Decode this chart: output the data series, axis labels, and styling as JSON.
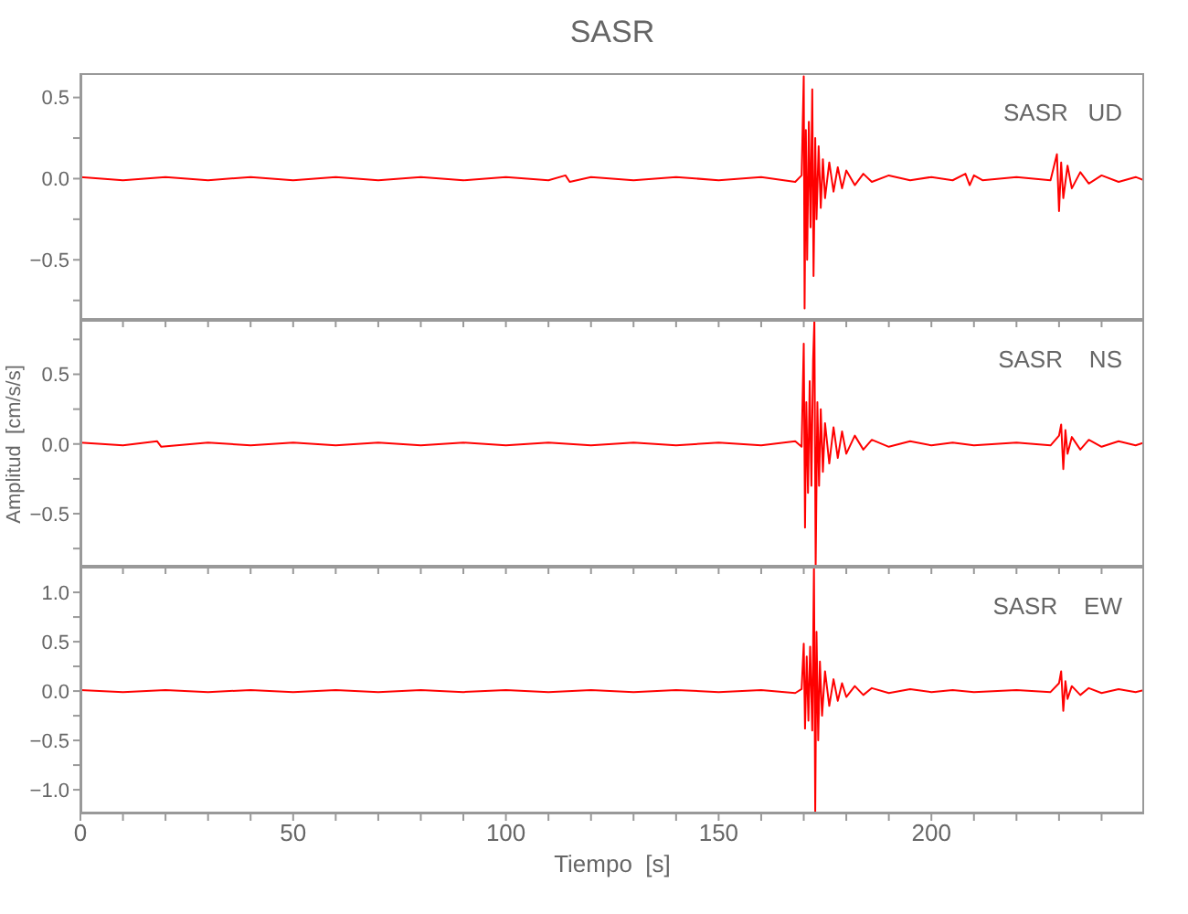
{
  "chart_data": [
    {
      "type": "line",
      "title": "SASR",
      "annotations": [
        "SASR   UD"
      ],
      "xlim": [
        0,
        250
      ],
      "ylim": [
        -0.87,
        0.65
      ],
      "tick_labels": "y",
      "xticks": [
        0,
        {
          "value": 10,
          "label": null
        },
        {
          "value": 20,
          "label": null
        },
        {
          "value": 30,
          "label": null
        },
        {
          "value": 40,
          "label": null
        },
        50,
        {
          "value": 60,
          "label": null
        },
        {
          "value": 70,
          "label": null
        },
        {
          "value": 80,
          "label": null
        },
        {
          "value": 90,
          "label": null
        },
        100,
        {
          "value": 110,
          "label": null
        },
        {
          "value": 120,
          "label": null
        },
        {
          "value": 130,
          "label": null
        },
        {
          "value": 140,
          "label": null
        },
        150,
        {
          "value": 160,
          "label": null
        },
        {
          "value": 170,
          "label": null
        },
        {
          "value": 180,
          "label": null
        },
        {
          "value": 190,
          "label": null
        },
        200,
        {
          "value": 210,
          "label": null
        },
        {
          "value": 220,
          "label": null
        },
        {
          "value": 230,
          "label": null
        },
        {
          "value": 240,
          "label": null
        }
      ],
      "yticks": [
        {
          "value": -0.75,
          "label": null
        },
        {
          "value": -0.5,
          "label": "−0.5"
        },
        {
          "value": -0.25,
          "label": null
        },
        {
          "value": 0,
          "label": "0.0"
        },
        {
          "value": 0.25,
          "label": null
        },
        0.5
      ],
      "series": [
        {
          "color": "#ff0000",
          "x": [
            0,
            10,
            20,
            30,
            40,
            50,
            60,
            70,
            80,
            90,
            100,
            110,
            114,
            115,
            120,
            130,
            140,
            150,
            160,
            168,
            169.5,
            170,
            170.2,
            170.5,
            170.8,
            171.2,
            171.6,
            172,
            172.3,
            172.7,
            173,
            173.5,
            174,
            174.5,
            175,
            176,
            177,
            178,
            179,
            180,
            182,
            184,
            186,
            190,
            195,
            200,
            205,
            208,
            209,
            210,
            212,
            220,
            228,
            229.5,
            230,
            230.5,
            231,
            232,
            233,
            235,
            237,
            240,
            244,
            248,
            250
          ],
          "values": [
            0.01,
            -0.01,
            0.01,
            -0.01,
            0.01,
            -0.01,
            0.01,
            -0.01,
            0.01,
            -0.01,
            0.01,
            -0.01,
            0.02,
            -0.02,
            0.01,
            -0.01,
            0.01,
            -0.01,
            0.01,
            -0.02,
            0.02,
            0.63,
            -0.8,
            0.3,
            -0.5,
            0.35,
            -0.3,
            0.55,
            -0.6,
            0.25,
            -0.25,
            0.2,
            -0.18,
            0.12,
            -0.12,
            0.1,
            -0.08,
            0.07,
            -0.06,
            0.05,
            -0.04,
            0.03,
            -0.02,
            0.02,
            -0.01,
            0.01,
            -0.01,
            0.03,
            -0.04,
            0.02,
            -0.01,
            0.01,
            -0.01,
            0.15,
            -0.2,
            0.1,
            -0.12,
            0.08,
            -0.06,
            0.04,
            -0.03,
            0.02,
            -0.02,
            0.01,
            -0.01
          ]
        }
      ]
    },
    {
      "type": "line",
      "ylabel": "Amplitud  [cm/s/s]",
      "annotations": [
        "SASR    NS"
      ],
      "xlim": [
        0,
        250
      ],
      "ylim": [
        -0.88,
        0.89
      ],
      "tick_labels": "y",
      "xticks": [
        0,
        {
          "value": 10,
          "label": null
        },
        {
          "value": 20,
          "label": null
        },
        {
          "value": 30,
          "label": null
        },
        {
          "value": 40,
          "label": null
        },
        50,
        {
          "value": 60,
          "label": null
        },
        {
          "value": 70,
          "label": null
        },
        {
          "value": 80,
          "label": null
        },
        {
          "value": 90,
          "label": null
        },
        100,
        {
          "value": 110,
          "label": null
        },
        {
          "value": 120,
          "label": null
        },
        {
          "value": 130,
          "label": null
        },
        {
          "value": 140,
          "label": null
        },
        150,
        {
          "value": 160,
          "label": null
        },
        {
          "value": 170,
          "label": null
        },
        {
          "value": 180,
          "label": null
        },
        {
          "value": 190,
          "label": null
        },
        200,
        {
          "value": 210,
          "label": null
        },
        {
          "value": 220,
          "label": null
        },
        {
          "value": 230,
          "label": null
        },
        {
          "value": 240,
          "label": null
        }
      ],
      "yticks": [
        {
          "value": -0.75,
          "label": null
        },
        {
          "value": -0.5,
          "label": "−0.5"
        },
        {
          "value": -0.25,
          "label": null
        },
        {
          "value": 0,
          "label": "0.0"
        },
        {
          "value": 0.25,
          "label": null
        },
        0.5,
        {
          "value": 0.75,
          "label": null
        }
      ],
      "series": [
        {
          "color": "#ff0000",
          "x": [
            0,
            10,
            18,
            19,
            30,
            40,
            50,
            60,
            70,
            80,
            90,
            100,
            110,
            120,
            130,
            140,
            150,
            160,
            168,
            169.5,
            170,
            170.3,
            170.6,
            171,
            171.4,
            171.8,
            172.2,
            172.5,
            172.8,
            173.2,
            173.6,
            174,
            174.5,
            175,
            176,
            177,
            178,
            179,
            180,
            182,
            184,
            186,
            190,
            195,
            200,
            205,
            210,
            220,
            228,
            230,
            230.5,
            231,
            231.5,
            232,
            233,
            235,
            237,
            240,
            244,
            248,
            250
          ],
          "values": [
            0.01,
            -0.01,
            0.02,
            -0.02,
            0.01,
            -0.01,
            0.01,
            -0.01,
            0.01,
            -0.01,
            0.01,
            -0.01,
            0.01,
            -0.01,
            0.01,
            -0.01,
            0.01,
            -0.01,
            0.02,
            -0.02,
            0.72,
            -0.6,
            0.3,
            -0.35,
            0.45,
            -0.3,
            0.6,
            0.89,
            -0.88,
            0.3,
            -0.3,
            0.25,
            -0.2,
            0.15,
            -0.14,
            0.12,
            -0.1,
            0.09,
            -0.07,
            0.06,
            -0.04,
            0.03,
            -0.02,
            0.02,
            -0.01,
            0.01,
            -0.01,
            0.01,
            -0.01,
            0.06,
            0.14,
            -0.18,
            0.1,
            -0.07,
            0.05,
            -0.04,
            0.03,
            -0.02,
            0.02,
            -0.01,
            0.01
          ]
        }
      ]
    },
    {
      "type": "line",
      "xlabel": "Tiempo  [s]",
      "annotations": [
        "SASR    EW"
      ],
      "xlim": [
        0,
        250
      ],
      "ylim": [
        -1.24,
        1.26
      ],
      "xticks": [
        0,
        {
          "value": 10,
          "label": null
        },
        {
          "value": 20,
          "label": null
        },
        {
          "value": 30,
          "label": null
        },
        {
          "value": 40,
          "label": null
        },
        50,
        {
          "value": 60,
          "label": null
        },
        {
          "value": 70,
          "label": null
        },
        {
          "value": 80,
          "label": null
        },
        {
          "value": 90,
          "label": null
        },
        100,
        {
          "value": 110,
          "label": null
        },
        {
          "value": 120,
          "label": null
        },
        {
          "value": 130,
          "label": null
        },
        {
          "value": 140,
          "label": null
        },
        150,
        {
          "value": 160,
          "label": null
        },
        {
          "value": 170,
          "label": null
        },
        {
          "value": 180,
          "label": null
        },
        {
          "value": 190,
          "label": null
        },
        200,
        {
          "value": 210,
          "label": null
        },
        {
          "value": 220,
          "label": null
        },
        {
          "value": 230,
          "label": null
        },
        {
          "value": 240,
          "label": null
        }
      ],
      "yticks": [
        {
          "value": -1,
          "label": "−1.0"
        },
        {
          "value": -0.75,
          "label": null
        },
        {
          "value": -0.5,
          "label": "−0.5"
        },
        {
          "value": -0.25,
          "label": null
        },
        {
          "value": 0,
          "label": "0.0"
        },
        {
          "value": 0.25,
          "label": null
        },
        {
          "value": 0.5,
          "label": "0.5"
        },
        {
          "value": 0.75,
          "label": null
        },
        {
          "value": 1,
          "label": "1.0"
        }
      ],
      "series": [
        {
          "color": "#ff0000",
          "x": [
            0,
            10,
            20,
            30,
            40,
            50,
            60,
            70,
            80,
            90,
            100,
            110,
            120,
            130,
            140,
            150,
            160,
            168,
            169.5,
            170,
            170.3,
            170.7,
            171.1,
            171.5,
            172,
            172.4,
            172.7,
            173,
            173.4,
            173.8,
            174.3,
            175,
            176,
            177,
            178,
            179,
            180,
            182,
            184,
            186,
            190,
            195,
            200,
            205,
            210,
            220,
            228,
            230,
            230.5,
            231,
            231.5,
            232,
            233,
            235,
            237,
            240,
            244,
            248,
            250
          ],
          "values": [
            0.01,
            -0.01,
            0.01,
            -0.01,
            0.01,
            -0.01,
            0.01,
            -0.01,
            0.01,
            -0.01,
            0.01,
            -0.01,
            0.01,
            -0.01,
            0.01,
            -0.01,
            0.01,
            -0.02,
            0.02,
            0.48,
            -0.38,
            0.35,
            -0.3,
            0.45,
            -0.4,
            1.26,
            -1.24,
            0.6,
            -0.5,
            0.3,
            -0.25,
            0.2,
            -0.15,
            0.12,
            -0.1,
            0.08,
            -0.06,
            0.05,
            -0.04,
            0.03,
            -0.02,
            0.02,
            -0.01,
            0.01,
            -0.01,
            0.01,
            -0.01,
            0.08,
            0.2,
            -0.2,
            0.1,
            -0.08,
            0.05,
            -0.04,
            0.03,
            -0.02,
            0.02,
            -0.01,
            0.01
          ]
        }
      ]
    }
  ]
}
